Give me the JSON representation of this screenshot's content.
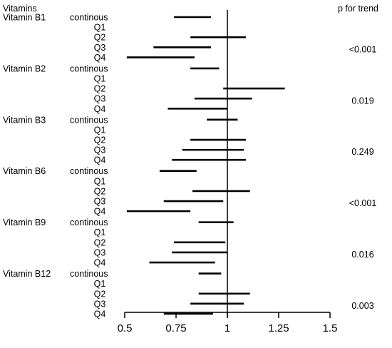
{
  "chart_data": {
    "type": "forest",
    "header_left": "Vitamins",
    "header_right": "p for trend",
    "reference_line": 1,
    "xlim": [
      0.5,
      1.5
    ],
    "xticks": [
      "0.5",
      "0.75",
      "1",
      "1.25",
      "1.5"
    ],
    "xtick_values": [
      0.5,
      0.75,
      1,
      1.25,
      1.5
    ],
    "groups": [
      {
        "name": "Vitamin B1",
        "p_trend": "<0.001",
        "rows": [
          {
            "label": "continous",
            "lo": 0.74,
            "hi": 0.92
          },
          {
            "label": "Q1",
            "lo": null,
            "hi": null
          },
          {
            "label": "Q2",
            "lo": 0.82,
            "hi": 1.09
          },
          {
            "label": "Q3",
            "lo": 0.64,
            "hi": 0.92
          },
          {
            "label": "Q4",
            "lo": 0.51,
            "hi": 0.84
          }
        ]
      },
      {
        "name": "Vitamin B2",
        "p_trend": "0.019",
        "rows": [
          {
            "label": "continous",
            "lo": 0.82,
            "hi": 0.96
          },
          {
            "label": "Q1",
            "lo": null,
            "hi": null
          },
          {
            "label": "Q2",
            "lo": 0.98,
            "hi": 1.28
          },
          {
            "label": "Q3",
            "lo": 0.84,
            "hi": 1.12
          },
          {
            "label": "Q4",
            "lo": 0.71,
            "hi": 1.0
          }
        ]
      },
      {
        "name": "Vitamin B3",
        "p_trend": "0.249",
        "rows": [
          {
            "label": "continous",
            "lo": 0.9,
            "hi": 1.05
          },
          {
            "label": "Q1",
            "lo": null,
            "hi": null
          },
          {
            "label": "Q2",
            "lo": 0.82,
            "hi": 1.09
          },
          {
            "label": "Q3",
            "lo": 0.78,
            "hi": 1.08
          },
          {
            "label": "Q4",
            "lo": 0.73,
            "hi": 1.09
          }
        ]
      },
      {
        "name": "Vitamin B6",
        "p_trend": "<0.001",
        "rows": [
          {
            "label": "continous",
            "lo": 0.67,
            "hi": 0.85
          },
          {
            "label": "Q1",
            "lo": null,
            "hi": null
          },
          {
            "label": "Q2",
            "lo": 0.83,
            "hi": 1.11
          },
          {
            "label": "Q3",
            "lo": 0.69,
            "hi": 0.98
          },
          {
            "label": "Q4",
            "lo": 0.51,
            "hi": 0.82
          }
        ]
      },
      {
        "name": "Vitamin B9",
        "p_trend": "0.016",
        "rows": [
          {
            "label": "continous",
            "lo": 0.86,
            "hi": 1.03
          },
          {
            "label": "Q1",
            "lo": null,
            "hi": null
          },
          {
            "label": "Q2",
            "lo": 0.74,
            "hi": 0.99
          },
          {
            "label": "Q3",
            "lo": 0.73,
            "hi": 1.0
          },
          {
            "label": "Q4",
            "lo": 0.62,
            "hi": 0.94
          }
        ]
      },
      {
        "name": "Vitamin B12",
        "p_trend": "0.003",
        "rows": [
          {
            "label": "continous",
            "lo": 0.86,
            "hi": 0.97
          },
          {
            "label": "Q1",
            "lo": null,
            "hi": null
          },
          {
            "label": "Q2",
            "lo": 0.86,
            "hi": 1.11
          },
          {
            "label": "Q3",
            "lo": 0.82,
            "hi": 1.08
          },
          {
            "label": "Q4",
            "lo": 0.69,
            "hi": 0.93
          }
        ]
      }
    ]
  }
}
